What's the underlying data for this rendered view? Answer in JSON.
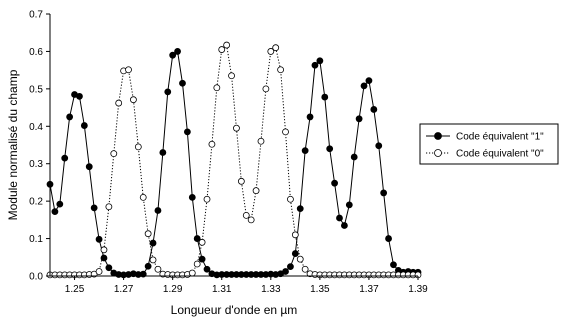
{
  "chart_data": {
    "type": "scatter",
    "title": "",
    "xlabel": "Longueur d'onde en µm",
    "ylabel": "Module normalisé du champ",
    "xlim": [
      1.24,
      1.39
    ],
    "ylim": [
      0,
      0.7
    ],
    "x_ticks": [
      "1.25",
      "1.27",
      "1.29",
      "1.31",
      "1.33",
      "1.35",
      "1.37",
      "1.39"
    ],
    "y_ticks": [
      "0.0",
      "0.1",
      "0.2",
      "0.3",
      "0.4",
      "0.5",
      "0.6",
      "0.7"
    ],
    "grid": false,
    "legend_position": "right",
    "series": [
      {
        "name": "Code équivalent \"1\"",
        "marker": "filled-circle",
        "line": "solid",
        "color": "#000000",
        "points": [
          [
            1.24,
            0.245
          ],
          [
            1.242,
            0.172
          ],
          [
            1.244,
            0.192
          ],
          [
            1.246,
            0.315
          ],
          [
            1.248,
            0.425
          ],
          [
            1.25,
            0.485
          ],
          [
            1.252,
            0.48
          ],
          [
            1.254,
            0.402
          ],
          [
            1.256,
            0.292
          ],
          [
            1.258,
            0.182
          ],
          [
            1.26,
            0.098
          ],
          [
            1.262,
            0.048
          ],
          [
            1.264,
            0.022
          ],
          [
            1.266,
            0.008
          ],
          [
            1.268,
            0.004
          ],
          [
            1.27,
            0.003
          ],
          [
            1.272,
            0.004
          ],
          [
            1.274,
            0.006
          ],
          [
            1.276,
            0.004
          ],
          [
            1.278,
            0.005
          ],
          [
            1.28,
            0.026
          ],
          [
            1.282,
            0.088
          ],
          [
            1.284,
            0.175
          ],
          [
            1.286,
            0.33
          ],
          [
            1.288,
            0.492
          ],
          [
            1.29,
            0.59
          ],
          [
            1.292,
            0.6
          ],
          [
            1.294,
            0.515
          ],
          [
            1.296,
            0.385
          ],
          [
            1.298,
            0.21
          ],
          [
            1.3,
            0.1
          ],
          [
            1.302,
            0.045
          ],
          [
            1.304,
            0.018
          ],
          [
            1.306,
            0.006
          ],
          [
            1.308,
            0.003
          ],
          [
            1.31,
            0.004
          ],
          [
            1.312,
            0.004
          ],
          [
            1.314,
            0.004
          ],
          [
            1.316,
            0.004
          ],
          [
            1.318,
            0.004
          ],
          [
            1.32,
            0.004
          ],
          [
            1.322,
            0.004
          ],
          [
            1.324,
            0.004
          ],
          [
            1.326,
            0.004
          ],
          [
            1.328,
            0.004
          ],
          [
            1.33,
            0.005
          ],
          [
            1.332,
            0.004
          ],
          [
            1.334,
            0.006
          ],
          [
            1.336,
            0.012
          ],
          [
            1.338,
            0.025
          ],
          [
            1.34,
            0.06
          ],
          [
            1.342,
            0.18
          ],
          [
            1.344,
            0.335
          ],
          [
            1.346,
            0.425
          ],
          [
            1.348,
            0.563
          ],
          [
            1.35,
            0.575
          ],
          [
            1.352,
            0.478
          ],
          [
            1.354,
            0.34
          ],
          [
            1.356,
            0.248
          ],
          [
            1.358,
            0.155
          ],
          [
            1.36,
            0.135
          ],
          [
            1.362,
            0.19
          ],
          [
            1.364,
            0.318
          ],
          [
            1.366,
            0.42
          ],
          [
            1.368,
            0.508
          ],
          [
            1.37,
            0.522
          ],
          [
            1.372,
            0.445
          ],
          [
            1.374,
            0.348
          ],
          [
            1.376,
            0.222
          ],
          [
            1.378,
            0.1
          ],
          [
            1.38,
            0.03
          ],
          [
            1.382,
            0.015
          ],
          [
            1.384,
            0.01
          ],
          [
            1.386,
            0.012
          ],
          [
            1.388,
            0.01
          ],
          [
            1.39,
            0.01
          ]
        ]
      },
      {
        "name": "Code équivalent \"0\"",
        "marker": "open-circle",
        "line": "dotted",
        "color": "#000000",
        "points": [
          [
            1.24,
            0.003
          ],
          [
            1.242,
            0.003
          ],
          [
            1.244,
            0.003
          ],
          [
            1.246,
            0.003
          ],
          [
            1.248,
            0.003
          ],
          [
            1.25,
            0.003
          ],
          [
            1.252,
            0.003
          ],
          [
            1.254,
            0.003
          ],
          [
            1.256,
            0.004
          ],
          [
            1.258,
            0.005
          ],
          [
            1.26,
            0.012
          ],
          [
            1.262,
            0.07
          ],
          [
            1.264,
            0.185
          ],
          [
            1.266,
            0.327
          ],
          [
            1.268,
            0.462
          ],
          [
            1.27,
            0.548
          ],
          [
            1.272,
            0.551
          ],
          [
            1.274,
            0.471
          ],
          [
            1.276,
            0.345
          ],
          [
            1.278,
            0.21
          ],
          [
            1.28,
            0.113
          ],
          [
            1.282,
            0.043
          ],
          [
            1.284,
            0.018
          ],
          [
            1.286,
            0.005
          ],
          [
            1.288,
            0.004
          ],
          [
            1.29,
            0.003
          ],
          [
            1.292,
            0.003
          ],
          [
            1.294,
            0.003
          ],
          [
            1.296,
            0.004
          ],
          [
            1.298,
            0.008
          ],
          [
            1.3,
            0.032
          ],
          [
            1.302,
            0.09
          ],
          [
            1.304,
            0.205
          ],
          [
            1.306,
            0.352
          ],
          [
            1.308,
            0.503
          ],
          [
            1.31,
            0.605
          ],
          [
            1.312,
            0.617
          ],
          [
            1.314,
            0.535
          ],
          [
            1.316,
            0.395
          ],
          [
            1.318,
            0.253
          ],
          [
            1.32,
            0.162
          ],
          [
            1.322,
            0.15
          ],
          [
            1.324,
            0.228
          ],
          [
            1.326,
            0.36
          ],
          [
            1.328,
            0.5
          ],
          [
            1.33,
            0.6
          ],
          [
            1.332,
            0.61
          ],
          [
            1.334,
            0.551
          ],
          [
            1.336,
            0.385
          ],
          [
            1.338,
            0.205
          ],
          [
            1.34,
            0.11
          ],
          [
            1.342,
            0.045
          ],
          [
            1.344,
            0.018
          ],
          [
            1.346,
            0.006
          ],
          [
            1.348,
            0.004
          ],
          [
            1.35,
            0.003
          ],
          [
            1.352,
            0.003
          ],
          [
            1.354,
            0.003
          ],
          [
            1.356,
            0.003
          ],
          [
            1.358,
            0.003
          ],
          [
            1.36,
            0.003
          ],
          [
            1.362,
            0.003
          ],
          [
            1.364,
            0.003
          ],
          [
            1.366,
            0.003
          ],
          [
            1.368,
            0.003
          ],
          [
            1.37,
            0.003
          ],
          [
            1.372,
            0.003
          ],
          [
            1.374,
            0.003
          ],
          [
            1.376,
            0.003
          ],
          [
            1.378,
            0.003
          ],
          [
            1.38,
            0.003
          ],
          [
            1.382,
            0.003
          ],
          [
            1.384,
            0.003
          ],
          [
            1.386,
            0.003
          ],
          [
            1.388,
            0.003
          ],
          [
            1.39,
            0.003
          ]
        ]
      }
    ]
  }
}
